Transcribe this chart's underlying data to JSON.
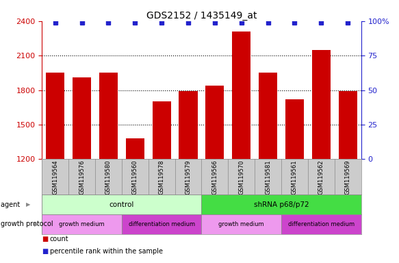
{
  "title": "GDS2152 / 1435149_at",
  "samples": [
    "GSM119564",
    "GSM119576",
    "GSM119580",
    "GSM119560",
    "GSM119578",
    "GSM119579",
    "GSM119566",
    "GSM119570",
    "GSM119581",
    "GSM119561",
    "GSM119562",
    "GSM119569"
  ],
  "counts": [
    1950,
    1910,
    1950,
    1380,
    1700,
    1790,
    1840,
    2310,
    1950,
    1720,
    2150,
    1790
  ],
  "percentile_ranks": [
    99,
    99,
    99,
    99,
    99,
    99,
    99,
    99,
    99,
    99,
    99,
    99
  ],
  "bar_color": "#cc0000",
  "dot_color": "#2222cc",
  "ylim_left": [
    1200,
    2400
  ],
  "ylim_right": [
    0,
    100
  ],
  "yticks_left": [
    1200,
    1500,
    1800,
    2100,
    2400
  ],
  "yticks_right": [
    0,
    25,
    50,
    75,
    100
  ],
  "agent_groups": [
    {
      "label": "control",
      "start": 0,
      "end": 6,
      "color": "#ccffcc"
    },
    {
      "label": "shRNA p68/p72",
      "start": 6,
      "end": 12,
      "color": "#44dd44"
    }
  ],
  "growth_groups": [
    {
      "label": "growth medium",
      "start": 0,
      "end": 3,
      "color": "#ee99ee"
    },
    {
      "label": "differentiation medium",
      "start": 3,
      "end": 6,
      "color": "#cc44cc"
    },
    {
      "label": "growth medium",
      "start": 6,
      "end": 9,
      "color": "#ee99ee"
    },
    {
      "label": "differentiation medium",
      "start": 9,
      "end": 12,
      "color": "#cc44cc"
    }
  ],
  "bar_color_red": "#cc0000",
  "dot_color_blue": "#2222cc",
  "tick_area_color": "#cccccc",
  "background_color": "#ffffff",
  "grid_color": "#000000",
  "title_fontsize": 10,
  "tick_fontsize": 8,
  "annotation_fontsize": 7.5,
  "bar_width": 0.7
}
